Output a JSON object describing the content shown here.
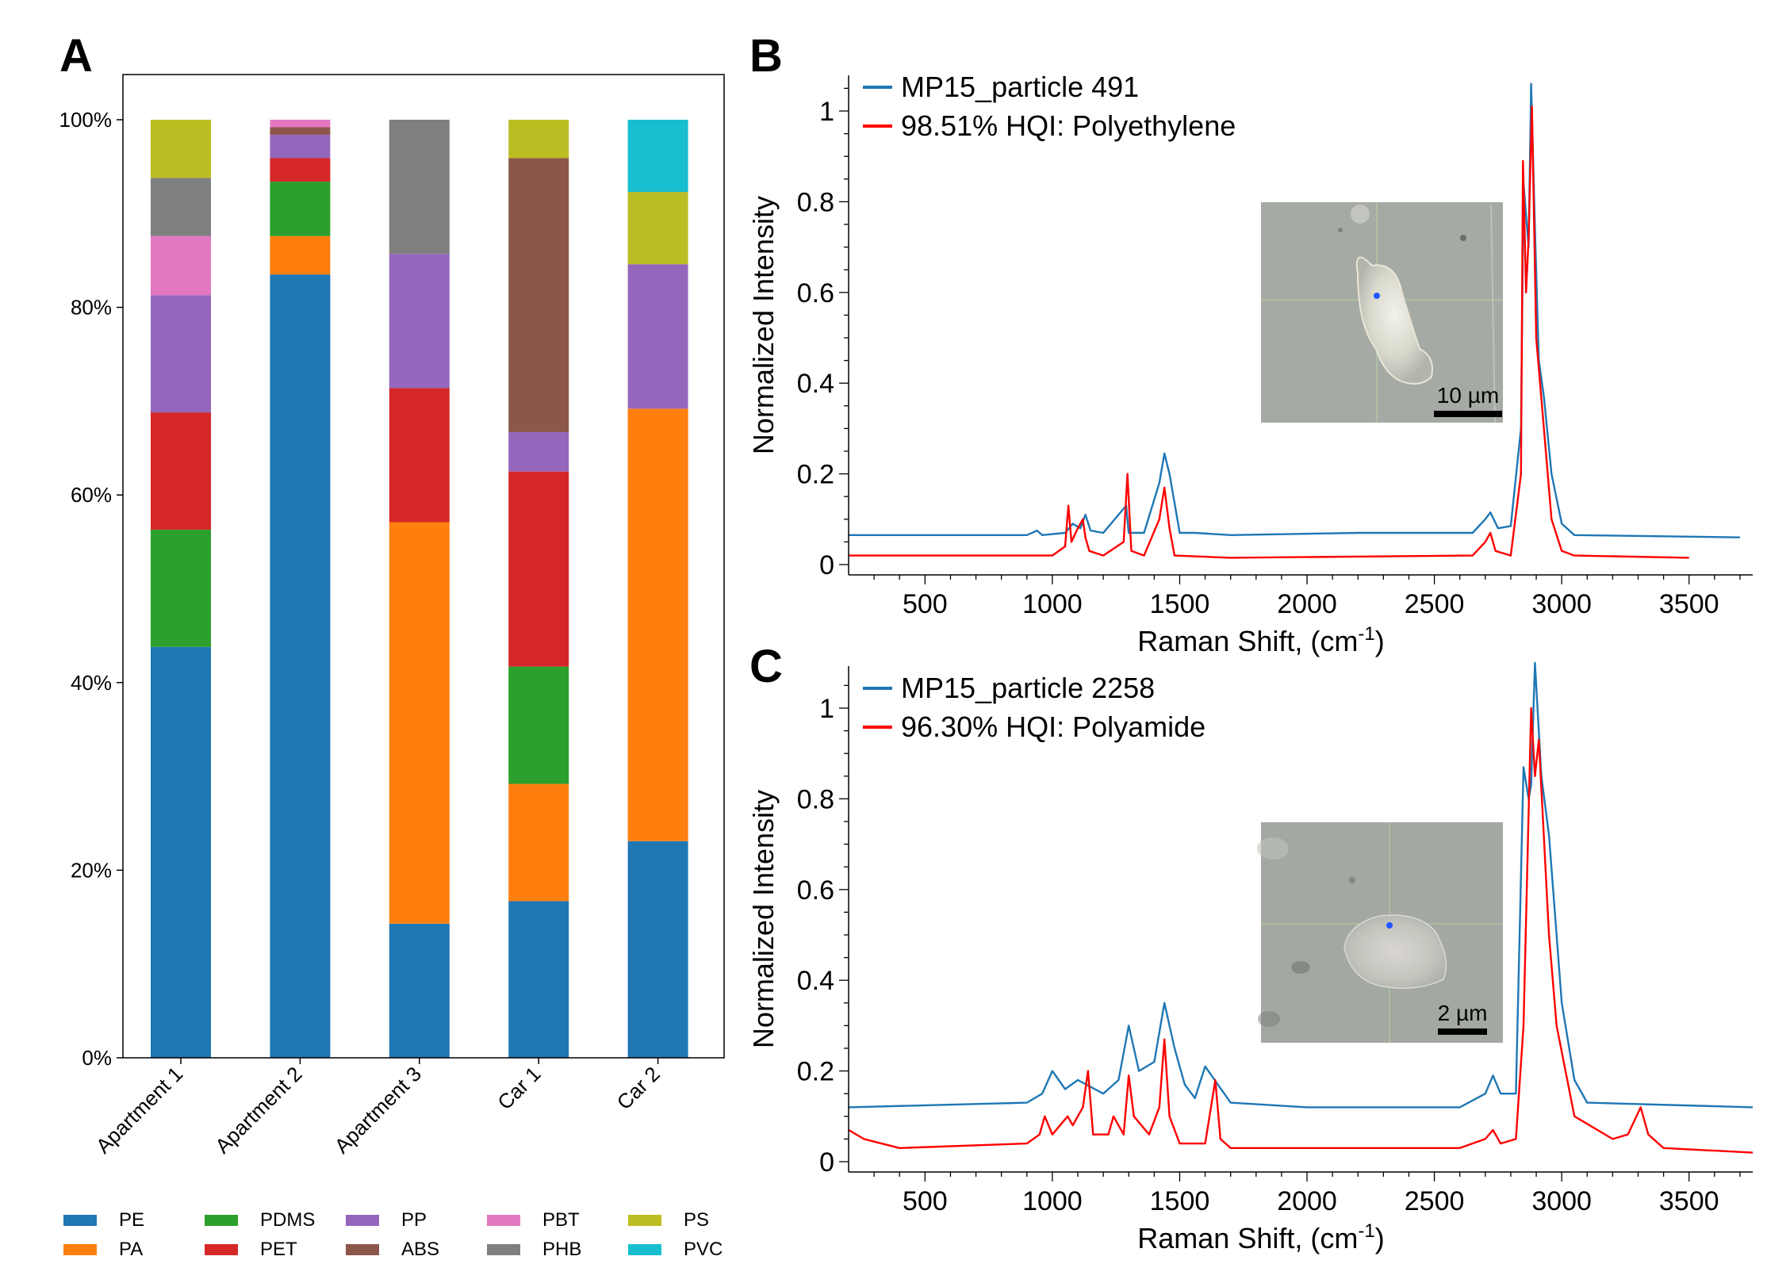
{
  "panels": {
    "a": {
      "letter": "A"
    },
    "b": {
      "letter": "B",
      "legend": [
        "MP15_particle 491",
        "98.51% HQI: Polyethylene"
      ],
      "scale_bar": "10 µm"
    },
    "c": {
      "letter": "C",
      "legend": [
        "MP15_particle 2258",
        "96.30% HQI: Polyamide"
      ],
      "scale_bar": "2 µm"
    }
  },
  "colors": {
    "sample": "#1f77b4",
    "reference": "#ff0000",
    "micrograph": "#a6aaa4"
  },
  "chart_data": [
    {
      "type": "bar",
      "stacked": true,
      "title": "",
      "xlabel": "",
      "ylabel": "",
      "ylim": [
        0,
        100
      ],
      "y_ticks": [
        "0%",
        "20%",
        "40%",
        "60%",
        "80%",
        "100%"
      ],
      "categories": [
        "Apartment 1",
        "Apartment 2",
        "Apartment 3",
        "Car 1",
        "Car 2"
      ],
      "legend_position": "bottom",
      "series": [
        {
          "name": "PE",
          "color": "#1f77b4",
          "values": [
            43.8,
            83.5,
            14.3,
            16.7,
            23.1
          ]
        },
        {
          "name": "PA",
          "color": "#ff7f0e",
          "values": [
            0,
            4.1,
            42.8,
            12.5,
            46.1
          ]
        },
        {
          "name": "PDMS",
          "color": "#2ca02c",
          "values": [
            12.5,
            5.8,
            0,
            12.5,
            0
          ]
        },
        {
          "name": "PET",
          "color": "#d62728",
          "values": [
            12.5,
            2.5,
            14.3,
            20.8,
            0
          ]
        },
        {
          "name": "PP",
          "color": "#9467bd",
          "values": [
            12.5,
            2.5,
            14.3,
            4.2,
            15.4
          ]
        },
        {
          "name": "ABS",
          "color": "#8c564b",
          "values": [
            0,
            0.8,
            0,
            29.2,
            0
          ]
        },
        {
          "name": "PBT",
          "color": "#e377c2",
          "values": [
            6.3,
            0.8,
            0,
            0,
            0
          ]
        },
        {
          "name": "PHB",
          "color": "#7f7f7f",
          "values": [
            6.2,
            0,
            14.3,
            0,
            0
          ]
        },
        {
          "name": "PS",
          "color": "#bcbd22",
          "values": [
            6.2,
            0,
            0,
            4.1,
            7.7
          ]
        },
        {
          "name": "PVC",
          "color": "#17becf",
          "values": [
            0,
            0,
            0,
            0,
            7.7
          ]
        }
      ]
    },
    {
      "type": "line",
      "title": "",
      "xlabel": "Raman Shift, (cm",
      "xlabel_sup": "-1",
      "xlabel_end": ")",
      "ylabel": "Normalized Intensity",
      "xlim": [
        200,
        3750
      ],
      "ylim": [
        0,
        1.07
      ],
      "x_ticks": [
        500,
        1000,
        1500,
        2000,
        2500,
        3000,
        3500
      ],
      "y_ticks": [
        0,
        0.2,
        0.4,
        0.6,
        0.8,
        1
      ],
      "series": [
        {
          "name": "MP15_particle 491",
          "color": "#1f77b4",
          "x": [
            200,
            900,
            940,
            960,
            1050,
            1080,
            1110,
            1130,
            1150,
            1200,
            1290,
            1300,
            1360,
            1420,
            1440,
            1460,
            1500,
            1560,
            1700,
            2200,
            2650,
            2700,
            2720,
            2750,
            2800,
            2840,
            2850,
            2870,
            2880,
            2895,
            2910,
            2930,
            2960,
            3000,
            3050,
            3700
          ],
          "y": [
            0.065,
            0.065,
            0.075,
            0.065,
            0.07,
            0.09,
            0.08,
            0.11,
            0.075,
            0.07,
            0.13,
            0.07,
            0.07,
            0.18,
            0.245,
            0.2,
            0.07,
            0.07,
            0.065,
            0.07,
            0.07,
            0.1,
            0.115,
            0.08,
            0.085,
            0.3,
            0.84,
            0.7,
            1.06,
            0.74,
            0.45,
            0.37,
            0.2,
            0.09,
            0.065,
            0.06
          ]
        },
        {
          "name": "98.51% HQI: Polyethylene",
          "color": "#ff0000",
          "x": [
            200,
            1000,
            1050,
            1063,
            1075,
            1100,
            1120,
            1130,
            1145,
            1200,
            1280,
            1295,
            1310,
            1360,
            1420,
            1440,
            1460,
            1480,
            1700,
            2650,
            2700,
            2720,
            2740,
            2800,
            2840,
            2848,
            2860,
            2870,
            2883,
            2900,
            2930,
            2960,
            3000,
            3050,
            3500
          ],
          "y": [
            0.02,
            0.02,
            0.04,
            0.13,
            0.05,
            0.08,
            0.1,
            0.06,
            0.03,
            0.02,
            0.05,
            0.2,
            0.03,
            0.02,
            0.1,
            0.17,
            0.08,
            0.02,
            0.015,
            0.02,
            0.05,
            0.07,
            0.03,
            0.02,
            0.2,
            0.89,
            0.6,
            0.72,
            1.01,
            0.5,
            0.3,
            0.1,
            0.03,
            0.02,
            0.015
          ]
        }
      ]
    },
    {
      "type": "line",
      "title": "",
      "xlabel": "Raman Shift, (cm",
      "xlabel_sup": "-1",
      "xlabel_end": ")",
      "ylabel": "Normalized Intensity",
      "xlim": [
        200,
        3750
      ],
      "ylim": [
        0,
        1.07
      ],
      "x_ticks": [
        500,
        1000,
        1500,
        2000,
        2500,
        3000,
        3500
      ],
      "y_ticks": [
        0,
        0.2,
        0.4,
        0.6,
        0.8,
        1
      ],
      "series": [
        {
          "name": "MP15_particle 2258",
          "color": "#1f77b4",
          "x": [
            200,
            900,
            960,
            1000,
            1050,
            1100,
            1200,
            1260,
            1300,
            1340,
            1400,
            1440,
            1480,
            1520,
            1560,
            1600,
            1650,
            1700,
            2000,
            2600,
            2700,
            2730,
            2760,
            2820,
            2850,
            2870,
            2880,
            2895,
            2920,
            2950,
            3000,
            3050,
            3100,
            3750
          ],
          "y": [
            0.12,
            0.13,
            0.15,
            0.2,
            0.16,
            0.18,
            0.15,
            0.18,
            0.3,
            0.2,
            0.22,
            0.35,
            0.25,
            0.17,
            0.14,
            0.21,
            0.17,
            0.13,
            0.12,
            0.12,
            0.15,
            0.19,
            0.15,
            0.15,
            0.87,
            0.8,
            0.83,
            1.1,
            0.85,
            0.72,
            0.35,
            0.18,
            0.13,
            0.12
          ]
        },
        {
          "name": "96.30% HQI: Polyamide",
          "color": "#ff0000",
          "x": [
            200,
            260,
            400,
            900,
            950,
            970,
            1000,
            1060,
            1080,
            1120,
            1140,
            1160,
            1220,
            1240,
            1280,
            1300,
            1320,
            1380,
            1420,
            1440,
            1460,
            1500,
            1600,
            1640,
            1660,
            1700,
            2600,
            2700,
            2730,
            2760,
            2820,
            2850,
            2880,
            2895,
            2910,
            2950,
            2980,
            3050,
            3200,
            3260,
            3310,
            3340,
            3400,
            3750
          ],
          "y": [
            0.07,
            0.05,
            0.03,
            0.04,
            0.06,
            0.1,
            0.06,
            0.1,
            0.08,
            0.12,
            0.2,
            0.06,
            0.06,
            0.1,
            0.06,
            0.19,
            0.1,
            0.06,
            0.12,
            0.27,
            0.1,
            0.04,
            0.04,
            0.18,
            0.05,
            0.03,
            0.03,
            0.05,
            0.07,
            0.04,
            0.05,
            0.3,
            1.0,
            0.85,
            0.93,
            0.5,
            0.3,
            0.1,
            0.05,
            0.06,
            0.12,
            0.06,
            0.03,
            0.02
          ]
        }
      ]
    }
  ]
}
